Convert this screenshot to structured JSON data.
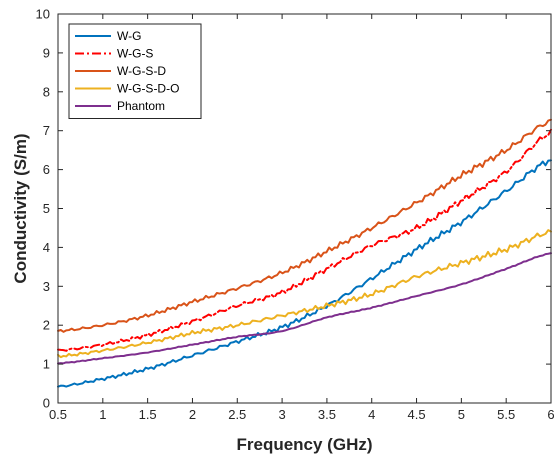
{
  "chart_data": {
    "type": "line",
    "title": "",
    "xlabel": "Frequency (GHz)",
    "ylabel": "Conductivity (S/m)",
    "xlim": [
      0.5,
      6
    ],
    "ylim": [
      0,
      10
    ],
    "xticks": [
      0.5,
      1,
      1.5,
      2,
      2.5,
      3,
      3.5,
      4,
      4.5,
      5,
      5.5,
      6
    ],
    "xtick_labels": [
      "0.5",
      "1",
      "1.5",
      "2",
      "2.5",
      "3",
      "3.5",
      "4",
      "4.5",
      "5",
      "5.5",
      "6"
    ],
    "yticks": [
      0,
      1,
      2,
      3,
      4,
      5,
      6,
      7,
      8,
      9,
      10
    ],
    "ytick_labels": [
      "0",
      "1",
      "2",
      "3",
      "4",
      "5",
      "6",
      "7",
      "8",
      "9",
      "10"
    ],
    "grid": false,
    "legend_position": "top-left",
    "x": [
      0.5,
      1.0,
      1.5,
      2.0,
      2.5,
      3.0,
      3.5,
      4.0,
      4.5,
      5.0,
      5.5,
      6.0
    ],
    "series": [
      {
        "name": "W-G",
        "color": "#0072BD",
        "dash": "solid",
        "values": [
          0.42,
          0.62,
          0.88,
          1.22,
          1.58,
          1.95,
          2.5,
          3.2,
          3.95,
          4.65,
          5.45,
          6.25
        ]
      },
      {
        "name": "W-G-S",
        "color": "#FF0000",
        "dash": "dashdot",
        "values": [
          1.35,
          1.5,
          1.75,
          2.1,
          2.5,
          2.85,
          3.45,
          4.05,
          4.5,
          5.2,
          5.95,
          6.95
        ]
      },
      {
        "name": "W-G-S-D",
        "color": "#D95319",
        "dash": "solid",
        "values": [
          1.85,
          2.0,
          2.25,
          2.6,
          2.95,
          3.35,
          3.9,
          4.5,
          5.15,
          5.85,
          6.5,
          7.25
        ]
      },
      {
        "name": "W-G-S-D-O",
        "color": "#EDB120",
        "dash": "solid",
        "values": [
          1.2,
          1.35,
          1.55,
          1.8,
          2.0,
          2.25,
          2.5,
          2.8,
          3.25,
          3.6,
          3.95,
          4.4
        ]
      },
      {
        "name": "Phantom",
        "color": "#7E2F8E",
        "dash": "solid",
        "values": [
          1.02,
          1.15,
          1.3,
          1.5,
          1.7,
          1.85,
          2.2,
          2.45,
          2.75,
          3.05,
          3.45,
          3.85
        ]
      }
    ]
  }
}
